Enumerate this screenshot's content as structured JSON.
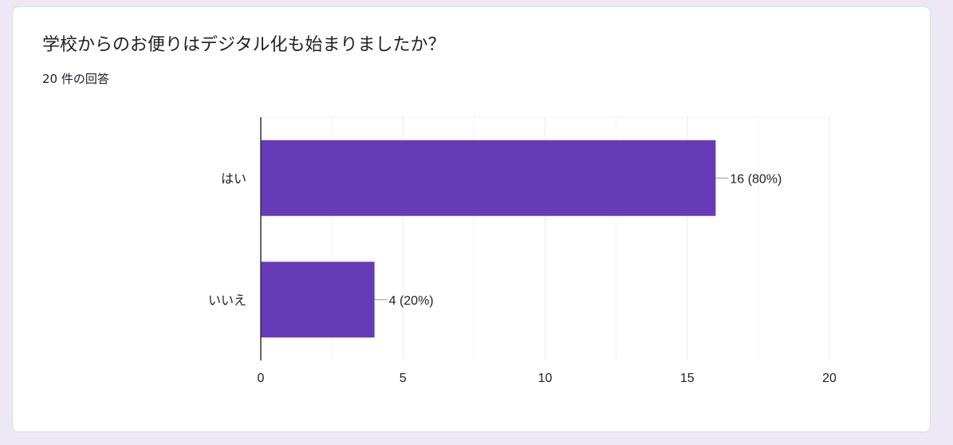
{
  "question": {
    "title": "学校からのお便りはデジタル化も始まりましたか？",
    "response_count": "20 件の回答"
  },
  "colors": {
    "bar": "#673ab7",
    "grid": "#ebebeb",
    "axis": "#333333"
  },
  "chart_data": {
    "type": "bar",
    "orientation": "horizontal",
    "categories": [
      "はい",
      "いいえ"
    ],
    "values": [
      16,
      4
    ],
    "data_labels": [
      "16 (80%)",
      "4 (20%)"
    ],
    "xlim": [
      0,
      20
    ],
    "x_ticks": [
      0,
      5,
      10,
      15,
      20
    ],
    "grid": true
  }
}
